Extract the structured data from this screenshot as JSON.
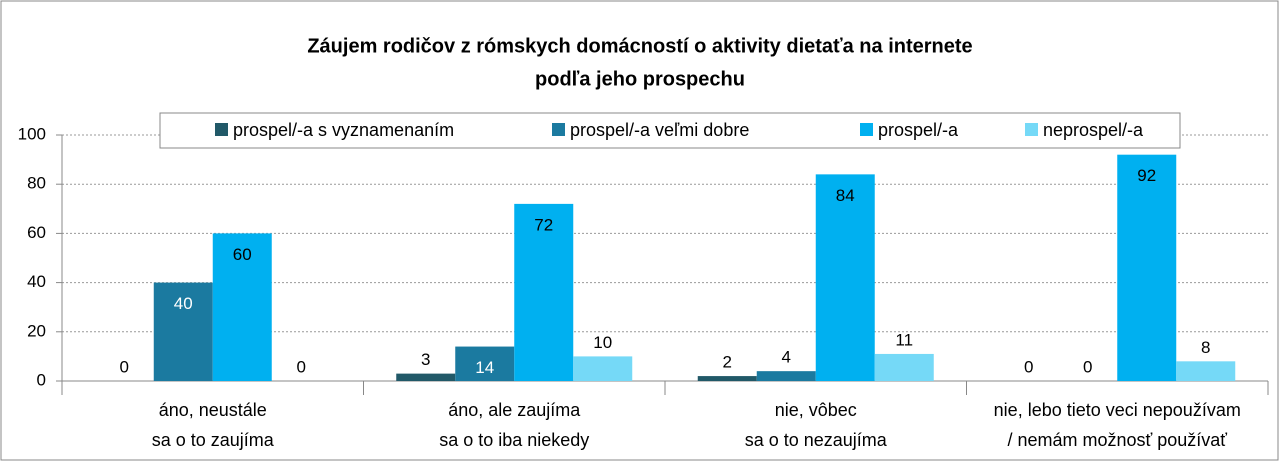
{
  "chart_data": {
    "type": "bar",
    "title": [
      "Záujem rodičov z rómskych domácností  o aktivity dietaťa na internete",
      "podľa jeho prospechu"
    ],
    "categories": [
      [
        "áno, neustále",
        "sa o to zaujíma"
      ],
      [
        "áno, ale zaujíma",
        "sa o to iba niekedy"
      ],
      [
        "nie, vôbec",
        "sa o to nezaujíma"
      ],
      [
        "nie, lebo tieto veci nepoužívam",
        "/ nemám možnosť používať"
      ]
    ],
    "series": [
      {
        "name": "prospel/-a s vyznamenaním",
        "color": "#215968",
        "values": [
          0,
          3,
          2,
          0
        ]
      },
      {
        "name": "prospel/-a veľmi dobre",
        "color": "#1b7aa0",
        "values": [
          40,
          14,
          4,
          0
        ]
      },
      {
        "name": "prospel/-a",
        "color": "#00b0f0",
        "values": [
          60,
          72,
          84,
          92
        ]
      },
      {
        "name": "neprospel/-a",
        "color": "#75d9f7",
        "values": [
          0,
          10,
          11,
          8
        ]
      }
    ],
    "ylim": [
      0,
      100
    ],
    "yticks": [
      0,
      20,
      40,
      60,
      80,
      100
    ],
    "grid": true,
    "legend": "top"
  }
}
